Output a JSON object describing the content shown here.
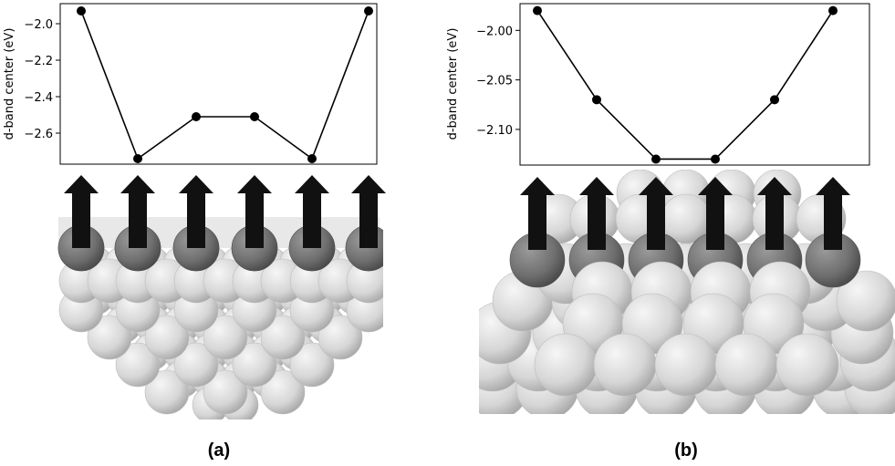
{
  "chart_data": [
    {
      "type": "line",
      "panel": "(a)",
      "x": [
        1,
        2,
        3,
        4,
        5,
        6
      ],
      "series": [
        {
          "values": [
            -1.93,
            -2.74,
            -2.51,
            -2.51,
            -2.74,
            -1.93
          ]
        }
      ],
      "ylabel": "d-band center (eV)",
      "yticks": [
        "−2.0",
        "−2.2",
        "−2.4",
        "−2.6"
      ],
      "ytick_values": [
        -2.0,
        -2.2,
        -2.4,
        -2.6
      ],
      "ylim": [
        -2.77,
        -1.89
      ],
      "grid": false
    },
    {
      "type": "line",
      "panel": "(b)",
      "x": [
        1,
        2,
        3,
        4,
        5,
        6
      ],
      "series": [
        {
          "values": [
            -1.98,
            -2.07,
            -2.13,
            -2.13,
            -2.07,
            -1.98
          ]
        }
      ],
      "ylabel": "d-band center (eV)",
      "yticks": [
        "−2.00",
        "−2.05",
        "−2.10"
      ],
      "ytick_values": [
        -2.0,
        -2.05,
        -2.1
      ],
      "ylim": [
        -2.136,
        -1.973
      ],
      "grid": false
    }
  ],
  "arrow_color": "#111111",
  "surface_atom_color": "#6f6f6f",
  "bulk_atom_color": "#d8d8d8"
}
